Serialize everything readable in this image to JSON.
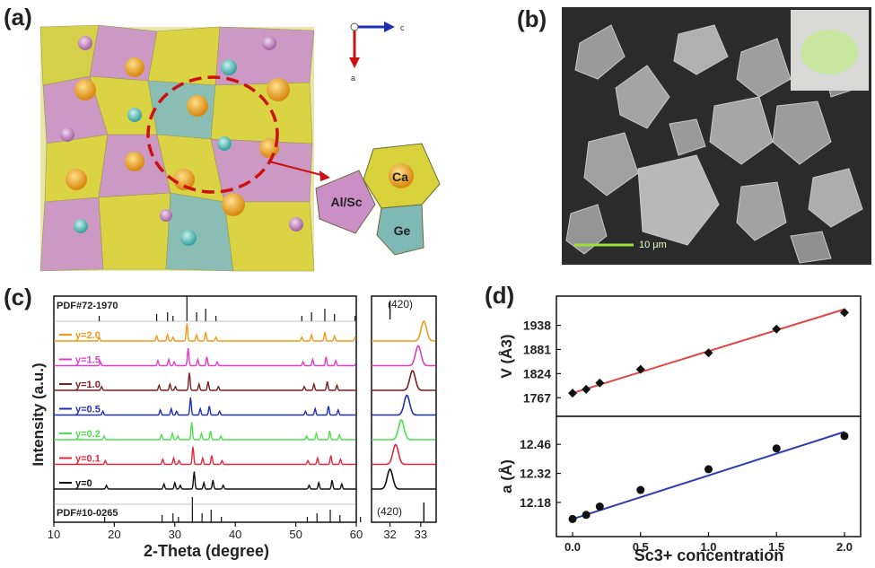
{
  "figure": {
    "panel_labels": [
      "(a)",
      "(b)",
      "(c)",
      "(d)"
    ]
  },
  "panel_a": {
    "axis_c": "c",
    "axis_a": "a",
    "site_labels": [
      "Al/Sc",
      "Ca",
      "Ge"
    ],
    "colors": {
      "polyhedra_yellow": "#d8d23a",
      "polyhedra_pink": "#c98fc6",
      "polyhedra_teal": "#7fb9b6",
      "dashed_circle": "#cc1111"
    }
  },
  "panel_b": {
    "scale_bar": "10 μm"
  },
  "panel_c": {
    "reference_top": "PDF#72-1970",
    "reference_bottom": "PDF#10-0265",
    "curves": [
      {
        "label": "y=2.0",
        "color": "#f39a1a"
      },
      {
        "label": "y=1.5",
        "color": "#e23dc7"
      },
      {
        "label": "y=1.0",
        "color": "#7a1f24"
      },
      {
        "label": "y=0.5",
        "color": "#1f2fb5"
      },
      {
        "label": "y=0.2",
        "color": "#4ee04e"
      },
      {
        "label": "y=0.1",
        "color": "#e0283c"
      },
      {
        "label": "y=0",
        "color": "#111111"
      }
    ],
    "ylabel": "Intensity (a.u.)",
    "xlabel": "2-Theta (degree)",
    "main_xticks": [
      "10",
      "20",
      "30",
      "40",
      "50",
      "60"
    ],
    "zoom_xticks": [
      "32",
      "33"
    ],
    "peak_label": "(420)"
  },
  "chart_data": [
    {
      "type": "scatter",
      "title": "(d) top",
      "xlabel": "Sc3+ concentration",
      "ylabel": "V (Å3)",
      "x": [
        0,
        0.1,
        0.2,
        0.5,
        1.0,
        1.5,
        2.0
      ],
      "y": [
        1778,
        1787,
        1802,
        1834,
        1873,
        1929,
        1968
      ],
      "fit": {
        "x": [
          0,
          2.0
        ],
        "y": [
          1778,
          1976
        ]
      },
      "yticks": [
        "1767",
        "1824",
        "1881",
        "1938"
      ],
      "ylim": [
        1740,
        1990
      ],
      "color": "#e24444"
    },
    {
      "type": "scatter",
      "title": "(d) bottom",
      "xlabel": "Sc3+ concentration",
      "ylabel": "a (Å)",
      "x": [
        0,
        0.1,
        0.2,
        0.5,
        1.0,
        1.5,
        2.0
      ],
      "y": [
        12.1,
        12.12,
        12.16,
        12.24,
        12.34,
        12.44,
        12.5
      ],
      "fit": {
        "x": [
          0,
          2.0
        ],
        "y": [
          12.1,
          12.52
        ]
      },
      "xticks": [
        "0.0",
        "0.5",
        "1.0",
        "1.5",
        "2.0"
      ],
      "yticks": [
        "12.18",
        "12.32",
        "12.46"
      ],
      "ylim": [
        12.05,
        12.56
      ],
      "color": "#2c3fb2"
    }
  ]
}
